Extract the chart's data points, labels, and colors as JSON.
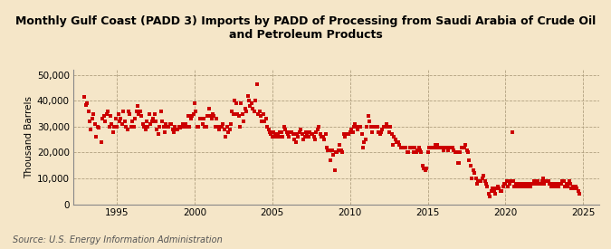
{
  "title": "Monthly Gulf Coast (PADD 3) Imports by PADD of Processing from Saudi Arabia of Crude Oil\nand Petroleum Products",
  "ylabel": "Thousand Barrels",
  "source": "Source: U.S. Energy Information Administration",
  "background_color": "#f5e6c8",
  "plot_background_color": "#f5e6c8",
  "marker_color": "#cc0000",
  "marker": "s",
  "marker_size": 9,
  "xlim": [
    1992.2,
    2026.0
  ],
  "ylim": [
    0,
    52000
  ],
  "yticks": [
    0,
    10000,
    20000,
    30000,
    40000,
    50000
  ],
  "ytick_labels": [
    "0",
    "10,000",
    "20,000",
    "30,000",
    "40,000",
    "50,000"
  ],
  "xticks": [
    1995,
    2000,
    2005,
    2010,
    2015,
    2020,
    2025
  ],
  "grid_color": "#b0a080",
  "grid_style": "--",
  "title_fontsize": 9,
  "axis_fontsize": 7.5,
  "source_fontsize": 7,
  "data": [
    [
      1992.917,
      41500
    ],
    [
      1993.0,
      38500
    ],
    [
      1993.083,
      39000
    ],
    [
      1993.167,
      36000
    ],
    [
      1993.25,
      32000
    ],
    [
      1993.333,
      29000
    ],
    [
      1993.417,
      33000
    ],
    [
      1993.5,
      35000
    ],
    [
      1993.583,
      31000
    ],
    [
      1993.667,
      26000
    ],
    [
      1993.75,
      30000
    ],
    [
      1993.833,
      29500
    ],
    [
      1994.0,
      24000
    ],
    [
      1994.083,
      33000
    ],
    [
      1994.167,
      34000
    ],
    [
      1994.25,
      32000
    ],
    [
      1994.333,
      35000
    ],
    [
      1994.417,
      36000
    ],
    [
      1994.5,
      30000
    ],
    [
      1994.583,
      34000
    ],
    [
      1994.667,
      31000
    ],
    [
      1994.75,
      28000
    ],
    [
      1994.833,
      30000
    ],
    [
      1994.917,
      33000
    ],
    [
      1995.0,
      30000
    ],
    [
      1995.083,
      35000
    ],
    [
      1995.167,
      32000
    ],
    [
      1995.25,
      33000
    ],
    [
      1995.333,
      31000
    ],
    [
      1995.417,
      36000
    ],
    [
      1995.5,
      32000
    ],
    [
      1995.583,
      30000
    ],
    [
      1995.667,
      29000
    ],
    [
      1995.75,
      36000
    ],
    [
      1995.833,
      35000
    ],
    [
      1995.917,
      30000
    ],
    [
      1996.0,
      32000
    ],
    [
      1996.083,
      30000
    ],
    [
      1996.167,
      33000
    ],
    [
      1996.25,
      36000
    ],
    [
      1996.333,
      38000
    ],
    [
      1996.417,
      35000
    ],
    [
      1996.5,
      36000
    ],
    [
      1996.583,
      34000
    ],
    [
      1996.667,
      31000
    ],
    [
      1996.75,
      30000
    ],
    [
      1996.833,
      29000
    ],
    [
      1996.917,
      32000
    ],
    [
      1997.0,
      30000
    ],
    [
      1997.083,
      35000
    ],
    [
      1997.167,
      31000
    ],
    [
      1997.25,
      32000
    ],
    [
      1997.333,
      33000
    ],
    [
      1997.417,
      35000
    ],
    [
      1997.5,
      32000
    ],
    [
      1997.583,
      29000
    ],
    [
      1997.667,
      27000
    ],
    [
      1997.75,
      30000
    ],
    [
      1997.833,
      36000
    ],
    [
      1997.917,
      32000
    ],
    [
      1998.0,
      30000
    ],
    [
      1998.083,
      28000
    ],
    [
      1998.167,
      31000
    ],
    [
      1998.25,
      30000
    ],
    [
      1998.333,
      30000
    ],
    [
      1998.417,
      31000
    ],
    [
      1998.5,
      31000
    ],
    [
      1998.583,
      29000
    ],
    [
      1998.667,
      28000
    ],
    [
      1998.75,
      30000
    ],
    [
      1998.833,
      29000
    ],
    [
      1998.917,
      29000
    ],
    [
      1999.0,
      30000
    ],
    [
      1999.083,
      29500
    ],
    [
      1999.167,
      30000
    ],
    [
      1999.25,
      31000
    ],
    [
      1999.333,
      30000
    ],
    [
      1999.417,
      31000
    ],
    [
      1999.5,
      30000
    ],
    [
      1999.583,
      34000
    ],
    [
      1999.667,
      30000
    ],
    [
      1999.75,
      33000
    ],
    [
      1999.833,
      34000
    ],
    [
      1999.917,
      35000
    ],
    [
      2000.0,
      39000
    ],
    [
      2000.083,
      36000
    ],
    [
      2000.167,
      30000
    ],
    [
      2000.25,
      30000
    ],
    [
      2000.333,
      33000
    ],
    [
      2000.417,
      33000
    ],
    [
      2000.5,
      31000
    ],
    [
      2000.583,
      33000
    ],
    [
      2000.667,
      30000
    ],
    [
      2000.75,
      30000
    ],
    [
      2000.833,
      34000
    ],
    [
      2000.917,
      37000
    ],
    [
      2001.0,
      34000
    ],
    [
      2001.083,
      33000
    ],
    [
      2001.167,
      35000
    ],
    [
      2001.25,
      34000
    ],
    [
      2001.333,
      30000
    ],
    [
      2001.417,
      33000
    ],
    [
      2001.5,
      30000
    ],
    [
      2001.583,
      29000
    ],
    [
      2001.667,
      30000
    ],
    [
      2001.75,
      30000
    ],
    [
      2001.833,
      31000
    ],
    [
      2001.917,
      29000
    ],
    [
      2002.0,
      26000
    ],
    [
      2002.083,
      30000
    ],
    [
      2002.167,
      28000
    ],
    [
      2002.25,
      29000
    ],
    [
      2002.333,
      31000
    ],
    [
      2002.417,
      36000
    ],
    [
      2002.5,
      35000
    ],
    [
      2002.583,
      40000
    ],
    [
      2002.667,
      39000
    ],
    [
      2002.75,
      35000
    ],
    [
      2002.833,
      34000
    ],
    [
      2002.917,
      30000
    ],
    [
      2003.0,
      39000
    ],
    [
      2003.083,
      35000
    ],
    [
      2003.167,
      32000
    ],
    [
      2003.25,
      37000
    ],
    [
      2003.333,
      36000
    ],
    [
      2003.417,
      42000
    ],
    [
      2003.5,
      40000
    ],
    [
      2003.583,
      38000
    ],
    [
      2003.667,
      39000
    ],
    [
      2003.75,
      37000
    ],
    [
      2003.833,
      36000
    ],
    [
      2003.917,
      40000
    ],
    [
      2004.0,
      46500
    ],
    [
      2004.083,
      35000
    ],
    [
      2004.167,
      36000
    ],
    [
      2004.25,
      34000
    ],
    [
      2004.333,
      32000
    ],
    [
      2004.417,
      35000
    ],
    [
      2004.5,
      32000
    ],
    [
      2004.583,
      33000
    ],
    [
      2004.667,
      30000
    ],
    [
      2004.75,
      29000
    ],
    [
      2004.833,
      28000
    ],
    [
      2004.917,
      27000
    ],
    [
      2005.0,
      26000
    ],
    [
      2005.083,
      28000
    ],
    [
      2005.167,
      27000
    ],
    [
      2005.25,
      26000
    ],
    [
      2005.333,
      27000
    ],
    [
      2005.417,
      26000
    ],
    [
      2005.5,
      28000
    ],
    [
      2005.583,
      28000
    ],
    [
      2005.667,
      26000
    ],
    [
      2005.75,
      30000
    ],
    [
      2005.833,
      29000
    ],
    [
      2005.917,
      28000
    ],
    [
      2006.0,
      27000
    ],
    [
      2006.083,
      26000
    ],
    [
      2006.167,
      28000
    ],
    [
      2006.25,
      28000
    ],
    [
      2006.333,
      27000
    ],
    [
      2006.417,
      25000
    ],
    [
      2006.5,
      24000
    ],
    [
      2006.583,
      27000
    ],
    [
      2006.667,
      26000
    ],
    [
      2006.75,
      28000
    ],
    [
      2006.833,
      29000
    ],
    [
      2006.917,
      27000
    ],
    [
      2007.0,
      25000
    ],
    [
      2007.083,
      26000
    ],
    [
      2007.167,
      28000
    ],
    [
      2007.25,
      27000
    ],
    [
      2007.333,
      26000
    ],
    [
      2007.417,
      28000
    ],
    [
      2007.5,
      27000
    ],
    [
      2007.583,
      27000
    ],
    [
      2007.667,
      26000
    ],
    [
      2007.75,
      25000
    ],
    [
      2007.833,
      28000
    ],
    [
      2007.917,
      29000
    ],
    [
      2008.0,
      30000
    ],
    [
      2008.083,
      27000
    ],
    [
      2008.167,
      26000
    ],
    [
      2008.25,
      26000
    ],
    [
      2008.333,
      25000
    ],
    [
      2008.417,
      27000
    ],
    [
      2008.5,
      22000
    ],
    [
      2008.583,
      21000
    ],
    [
      2008.667,
      21000
    ],
    [
      2008.75,
      17000
    ],
    [
      2008.833,
      21000
    ],
    [
      2008.917,
      19000
    ],
    [
      2009.0,
      13000
    ],
    [
      2009.083,
      20000
    ],
    [
      2009.167,
      20000
    ],
    [
      2009.25,
      21000
    ],
    [
      2009.333,
      23000
    ],
    [
      2009.417,
      21000
    ],
    [
      2009.5,
      20000
    ],
    [
      2009.583,
      27000
    ],
    [
      2009.667,
      26000
    ],
    [
      2009.75,
      27000
    ],
    [
      2009.833,
      27000
    ],
    [
      2009.917,
      27000
    ],
    [
      2010.0,
      28000
    ],
    [
      2010.083,
      29000
    ],
    [
      2010.167,
      28000
    ],
    [
      2010.25,
      30000
    ],
    [
      2010.333,
      31000
    ],
    [
      2010.417,
      30000
    ],
    [
      2010.5,
      29000
    ],
    [
      2010.583,
      30000
    ],
    [
      2010.667,
      30000
    ],
    [
      2010.75,
      27000
    ],
    [
      2010.833,
      22000
    ],
    [
      2010.917,
      24000
    ],
    [
      2011.0,
      25000
    ],
    [
      2011.083,
      30000
    ],
    [
      2011.167,
      34000
    ],
    [
      2011.25,
      32000
    ],
    [
      2011.333,
      30000
    ],
    [
      2011.417,
      28000
    ],
    [
      2011.5,
      30000
    ],
    [
      2011.583,
      30000
    ],
    [
      2011.667,
      30000
    ],
    [
      2011.75,
      30000
    ],
    [
      2011.833,
      28000
    ],
    [
      2011.917,
      27000
    ],
    [
      2012.0,
      28000
    ],
    [
      2012.083,
      29000
    ],
    [
      2012.167,
      30000
    ],
    [
      2012.25,
      30000
    ],
    [
      2012.333,
      31000
    ],
    [
      2012.417,
      30000
    ],
    [
      2012.5,
      28000
    ],
    [
      2012.583,
      30000
    ],
    [
      2012.667,
      27000
    ],
    [
      2012.75,
      23000
    ],
    [
      2012.833,
      26000
    ],
    [
      2012.917,
      25000
    ],
    [
      2013.0,
      24000
    ],
    [
      2013.083,
      24000
    ],
    [
      2013.167,
      23000
    ],
    [
      2013.25,
      22000
    ],
    [
      2013.333,
      22000
    ],
    [
      2013.417,
      22000
    ],
    [
      2013.5,
      22000
    ],
    [
      2013.583,
      22000
    ],
    [
      2013.667,
      20000
    ],
    [
      2013.75,
      20000
    ],
    [
      2013.833,
      22000
    ],
    [
      2013.917,
      22000
    ],
    [
      2014.0,
      22000
    ],
    [
      2014.083,
      20000
    ],
    [
      2014.167,
      22000
    ],
    [
      2014.25,
      20000
    ],
    [
      2014.333,
      21000
    ],
    [
      2014.417,
      22000
    ],
    [
      2014.5,
      21000
    ],
    [
      2014.583,
      20000
    ],
    [
      2014.667,
      15000
    ],
    [
      2014.75,
      14000
    ],
    [
      2014.833,
      13000
    ],
    [
      2014.917,
      14000
    ],
    [
      2015.0,
      20000
    ],
    [
      2015.083,
      22000
    ],
    [
      2015.167,
      22000
    ],
    [
      2015.25,
      22000
    ],
    [
      2015.333,
      22000
    ],
    [
      2015.417,
      22000
    ],
    [
      2015.5,
      23000
    ],
    [
      2015.583,
      23000
    ],
    [
      2015.667,
      22000
    ],
    [
      2015.75,
      22000
    ],
    [
      2015.833,
      22000
    ],
    [
      2015.917,
      22000
    ],
    [
      2016.0,
      21000
    ],
    [
      2016.083,
      22000
    ],
    [
      2016.167,
      22000
    ],
    [
      2016.25,
      22000
    ],
    [
      2016.333,
      21000
    ],
    [
      2016.417,
      22000
    ],
    [
      2016.5,
      22000
    ],
    [
      2016.583,
      22000
    ],
    [
      2016.667,
      21000
    ],
    [
      2016.75,
      20000
    ],
    [
      2016.833,
      20000
    ],
    [
      2016.917,
      16000
    ],
    [
      2017.0,
      16000
    ],
    [
      2017.083,
      20000
    ],
    [
      2017.167,
      22000
    ],
    [
      2017.25,
      22000
    ],
    [
      2017.333,
      22000
    ],
    [
      2017.417,
      23000
    ],
    [
      2017.5,
      21000
    ],
    [
      2017.583,
      20000
    ],
    [
      2017.667,
      17000
    ],
    [
      2017.75,
      15000
    ],
    [
      2017.833,
      10000
    ],
    [
      2017.917,
      13000
    ],
    [
      2018.0,
      12000
    ],
    [
      2018.083,
      10000
    ],
    [
      2018.167,
      8000
    ],
    [
      2018.25,
      9000
    ],
    [
      2018.333,
      9000
    ],
    [
      2018.417,
      9000
    ],
    [
      2018.5,
      10000
    ],
    [
      2018.583,
      11000
    ],
    [
      2018.667,
      9000
    ],
    [
      2018.75,
      8000
    ],
    [
      2018.833,
      7000
    ],
    [
      2018.917,
      4000
    ],
    [
      2019.0,
      3000
    ],
    [
      2019.083,
      5000
    ],
    [
      2019.167,
      6000
    ],
    [
      2019.25,
      5000
    ],
    [
      2019.333,
      4000
    ],
    [
      2019.417,
      6000
    ],
    [
      2019.5,
      7000
    ],
    [
      2019.583,
      6000
    ],
    [
      2019.667,
      5000
    ],
    [
      2019.75,
      5000
    ],
    [
      2019.833,
      7000
    ],
    [
      2019.917,
      8000
    ],
    [
      2020.0,
      8000
    ],
    [
      2020.083,
      9000
    ],
    [
      2020.167,
      7000
    ],
    [
      2020.25,
      8000
    ],
    [
      2020.333,
      9000
    ],
    [
      2020.417,
      28000
    ],
    [
      2020.5,
      9000
    ],
    [
      2020.583,
      7000
    ],
    [
      2020.667,
      8000
    ],
    [
      2020.75,
      7000
    ],
    [
      2020.833,
      8000
    ],
    [
      2020.917,
      7000
    ],
    [
      2021.0,
      7000
    ],
    [
      2021.083,
      8000
    ],
    [
      2021.167,
      8000
    ],
    [
      2021.25,
      7000
    ],
    [
      2021.333,
      8000
    ],
    [
      2021.417,
      8000
    ],
    [
      2021.5,
      7000
    ],
    [
      2021.583,
      7000
    ],
    [
      2021.667,
      8000
    ],
    [
      2021.75,
      8000
    ],
    [
      2021.833,
      9000
    ],
    [
      2021.917,
      8000
    ],
    [
      2022.0,
      8000
    ],
    [
      2022.083,
      9000
    ],
    [
      2022.167,
      8000
    ],
    [
      2022.25,
      8000
    ],
    [
      2022.333,
      9000
    ],
    [
      2022.417,
      10000
    ],
    [
      2022.5,
      8000
    ],
    [
      2022.583,
      9000
    ],
    [
      2022.667,
      9000
    ],
    [
      2022.75,
      9000
    ],
    [
      2022.833,
      8000
    ],
    [
      2022.917,
      7000
    ],
    [
      2023.0,
      7000
    ],
    [
      2023.083,
      8000
    ],
    [
      2023.167,
      7000
    ],
    [
      2023.25,
      8000
    ],
    [
      2023.333,
      8000
    ],
    [
      2023.417,
      7000
    ],
    [
      2023.5,
      8000
    ],
    [
      2023.583,
      8000
    ],
    [
      2023.667,
      9000
    ],
    [
      2023.75,
      9000
    ],
    [
      2023.833,
      7000
    ],
    [
      2023.917,
      8000
    ],
    [
      2024.0,
      7000
    ],
    [
      2024.083,
      9000
    ],
    [
      2024.167,
      8000
    ],
    [
      2024.25,
      6000
    ],
    [
      2024.333,
      7000
    ],
    [
      2024.417,
      6000
    ],
    [
      2024.5,
      7000
    ],
    [
      2024.583,
      6000
    ],
    [
      2024.667,
      5000
    ],
    [
      2024.75,
      4000
    ]
  ]
}
